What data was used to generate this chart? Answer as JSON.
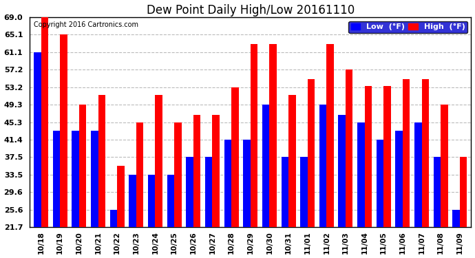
{
  "title": "Dew Point Daily High/Low 20161110",
  "copyright": "Copyright 2016 Cartronics.com",
  "categories": [
    "10/18",
    "10/19",
    "10/20",
    "10/21",
    "10/22",
    "10/23",
    "10/24",
    "10/25",
    "10/26",
    "10/27",
    "10/28",
    "10/29",
    "10/30",
    "10/31",
    "11/01",
    "11/02",
    "11/03",
    "11/04",
    "11/05",
    "11/06",
    "11/07",
    "11/08",
    "11/09"
  ],
  "low_values": [
    61.1,
    43.5,
    43.5,
    43.5,
    25.6,
    33.5,
    33.5,
    33.5,
    37.5,
    37.5,
    41.4,
    41.4,
    49.3,
    37.5,
    37.5,
    49.3,
    47.0,
    45.3,
    41.4,
    43.5,
    45.3,
    37.5,
    25.6
  ],
  "high_values": [
    69.0,
    65.1,
    49.3,
    51.5,
    35.5,
    45.3,
    51.5,
    45.3,
    47.0,
    47.0,
    53.2,
    63.0,
    63.0,
    51.5,
    55.0,
    63.0,
    57.2,
    53.5,
    53.5,
    55.0,
    55.0,
    49.3,
    37.5
  ],
  "low_color": "#0000FF",
  "high_color": "#FF0000",
  "bg_color": "#FFFFFF",
  "grid_color": "#BBBBBB",
  "yticks": [
    21.7,
    25.6,
    29.6,
    33.5,
    37.5,
    41.4,
    45.3,
    49.3,
    53.2,
    57.2,
    61.1,
    65.1,
    69.0
  ],
  "ymin": 21.7,
  "ymax": 69.0,
  "legend_low_label": "Low  (°F)",
  "legend_high_label": "High  (°F)"
}
